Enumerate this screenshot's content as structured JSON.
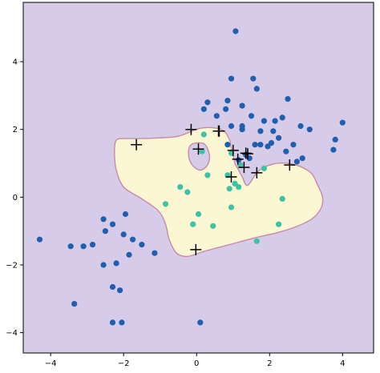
{
  "chart_data": {
    "type": "scatter",
    "title": "",
    "xlabel": "",
    "ylabel": "",
    "xlim": [
      -4.75,
      4.85
    ],
    "ylim": [
      -4.6,
      5.75
    ],
    "xticks": [
      -4,
      -2,
      0,
      2,
      4
    ],
    "yticks": [
      -4,
      -2,
      0,
      2,
      4
    ],
    "grid": false,
    "colors": {
      "background_region": "#d6ccea",
      "decision_region": "#fcf7d3",
      "decision_boundary": "#c98aa8",
      "class_0_points": "#1f5fb0",
      "class_1_points": "#3ec2a6",
      "support_vector_marker": "#000000"
    },
    "decision_region_outline": [
      [
        -2.2,
        1.68
      ],
      [
        -1.95,
        1.73
      ],
      [
        -1.55,
        1.73
      ],
      [
        -1.05,
        1.75
      ],
      [
        -0.5,
        1.8
      ],
      [
        0.05,
        2.02
      ],
      [
        0.45,
        2.05
      ],
      [
        0.75,
        1.95
      ],
      [
        0.9,
        1.7
      ],
      [
        0.95,
        1.45
      ],
      [
        1.0,
        1.25
      ],
      [
        1.05,
        1.0
      ],
      [
        1.15,
        0.8
      ],
      [
        1.25,
        0.6
      ],
      [
        1.4,
        0.35
      ],
      [
        1.7,
        0.78
      ],
      [
        2.1,
        0.98
      ],
      [
        2.5,
        1.0
      ],
      [
        2.85,
        0.9
      ],
      [
        3.15,
        0.7
      ],
      [
        3.3,
        0.4
      ],
      [
        3.45,
        0.0
      ],
      [
        3.4,
        -0.35
      ],
      [
        3.15,
        -0.65
      ],
      [
        2.7,
        -0.88
      ],
      [
        2.2,
        -1.05
      ],
      [
        1.6,
        -1.2
      ],
      [
        0.9,
        -1.4
      ],
      [
        0.2,
        -1.6
      ],
      [
        -0.25,
        -1.75
      ],
      [
        -0.55,
        -1.65
      ],
      [
        -0.75,
        -1.25
      ],
      [
        -0.85,
        -0.8
      ],
      [
        -1.05,
        -0.4
      ],
      [
        -1.5,
        -0.05
      ],
      [
        -2.0,
        0.3
      ],
      [
        -2.2,
        0.8
      ],
      [
        -2.25,
        1.3
      ]
    ],
    "decision_region_hole": [
      [
        -0.15,
        1.55
      ],
      [
        0.2,
        1.58
      ],
      [
        0.35,
        1.25
      ],
      [
        0.3,
        0.95
      ],
      [
        0.1,
        0.8
      ],
      [
        -0.12,
        0.95
      ],
      [
        -0.22,
        1.25
      ]
    ],
    "series": [
      {
        "class": 0,
        "x": [
          1.07,
          0.95,
          1.55,
          1.65,
          0.85,
          1.25,
          1.5,
          0.3,
          0.8,
          1.25,
          1.75,
          2.1,
          2.35,
          2.5,
          2.85,
          3.1,
          4.0,
          3.8,
          3.75,
          2.65,
          2.9,
          2.25,
          2.45,
          2.05,
          1.95,
          1.75,
          1.45,
          1.35,
          1.15,
          0.55,
          0.95,
          1.85,
          2.15,
          2.75,
          0.2,
          1.6,
          1.25,
          0.85,
          -1.95,
          -2.3,
          -2.55,
          -2.5,
          -2.0,
          -1.75,
          -1.5,
          -1.85,
          -2.2,
          -2.55,
          -2.85,
          -3.1,
          -3.45,
          -4.3,
          -3.35,
          -1.15,
          -2.3,
          -2.3,
          -2.05,
          -2.1,
          0.1
        ],
        "y": [
          4.9,
          3.5,
          3.5,
          3.2,
          2.85,
          2.7,
          2.4,
          2.8,
          2.6,
          2.0,
          1.95,
          1.95,
          2.35,
          2.9,
          2.1,
          2.0,
          2.2,
          1.7,
          1.4,
          1.55,
          1.15,
          1.75,
          1.35,
          1.6,
          1.5,
          1.55,
          1.15,
          1.25,
          1.1,
          2.4,
          2.1,
          2.25,
          2.25,
          1.05,
          2.6,
          1.55,
          2.1,
          1.55,
          -0.5,
          -0.8,
          -0.65,
          -1.0,
          -1.1,
          -1.25,
          -1.4,
          -1.7,
          -1.95,
          -2.0,
          -1.4,
          -1.45,
          -1.45,
          -1.25,
          -3.15,
          -1.65,
          -2.65,
          -3.7,
          -3.7,
          -2.75,
          -3.7
        ]
      },
      {
        "class": 1,
        "x": [
          0.2,
          0.15,
          0.95,
          0.85,
          1.2,
          1.85,
          1.15,
          0.9,
          2.35,
          1.05,
          -0.85,
          -0.45,
          -0.25,
          0.3,
          0.95,
          1.65,
          0.45,
          -0.1,
          0.05,
          2.25
        ],
        "y": [
          1.85,
          1.35,
          1.3,
          0.65,
          0.95,
          0.85,
          0.3,
          0.25,
          -0.05,
          0.4,
          -0.2,
          0.3,
          0.15,
          0.65,
          -0.3,
          -1.3,
          -0.85,
          -0.8,
          -0.5,
          -0.8
        ]
      }
    ],
    "support_vectors": {
      "x": [
        -0.15,
        0.6,
        0.62,
        -1.65,
        0.05,
        1.0,
        1.13,
        1.3,
        1.35,
        0.95,
        1.4,
        1.65,
        2.55,
        -0.02
      ],
      "y": [
        2.0,
        1.95,
        1.95,
        1.55,
        1.42,
        1.38,
        1.12,
        0.88,
        1.3,
        0.6,
        1.28,
        0.72,
        0.95,
        -1.55
      ]
    }
  }
}
